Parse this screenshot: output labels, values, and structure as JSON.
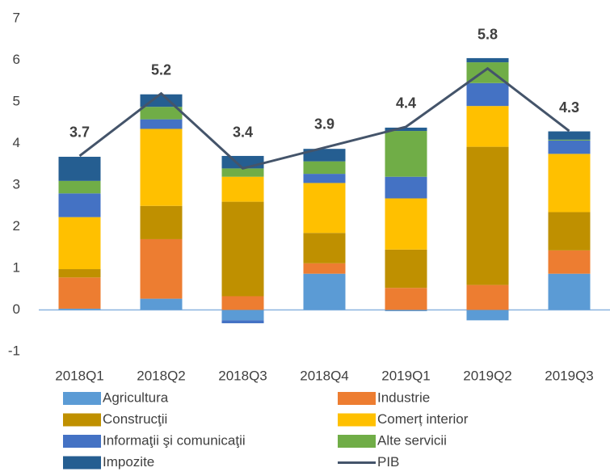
{
  "chart_data": {
    "type": "bar",
    "stacked": true,
    "categories": [
      "2018Q1",
      "2018Q2",
      "2018Q3",
      "2018Q4",
      "2019Q1",
      "2019Q2",
      "2019Q3"
    ],
    "series": [
      {
        "name": "Agricultura",
        "color": "#5b9bd5",
        "values": [
          0.03,
          0.27,
          -0.25,
          0.87,
          -0.03,
          -0.25,
          0.87
        ]
      },
      {
        "name": "Industrie",
        "color": "#ed7d31",
        "values": [
          0.75,
          1.43,
          0.33,
          0.25,
          0.53,
          0.6,
          0.56
        ]
      },
      {
        "name": "Construcţii",
        "color": "#bf9000",
        "values": [
          0.2,
          0.8,
          2.27,
          0.73,
          0.92,
          3.32,
          0.92
        ]
      },
      {
        "name": "Comerț interior",
        "color": "#ffc000",
        "values": [
          1.25,
          1.85,
          0.6,
          1.2,
          1.23,
          0.98,
          1.4
        ]
      },
      {
        "name": "Informaţii şi comunicaţii",
        "color": "#4472c4",
        "values": [
          0.57,
          0.23,
          -0.07,
          0.22,
          0.52,
          0.55,
          0.32
        ]
      },
      {
        "name": "Alte servicii",
        "color": "#70ad47",
        "values": [
          0.3,
          0.3,
          0.2,
          0.3,
          1.1,
          0.5,
          0.02
        ]
      },
      {
        "name": "Impozite",
        "color": "#255e91",
        "values": [
          0.58,
          0.3,
          0.3,
          0.3,
          0.08,
          0.1,
          0.2
        ]
      },
      {
        "name": "PIB",
        "color": "#44546a",
        "type": "line",
        "values": [
          3.7,
          5.2,
          3.4,
          3.9,
          4.4,
          5.8,
          4.3
        ]
      }
    ],
    "ylim": [
      -1,
      7
    ],
    "yticks": [
      -1,
      0,
      1,
      2,
      3,
      4,
      5,
      6,
      7
    ],
    "legend": "bottom"
  }
}
